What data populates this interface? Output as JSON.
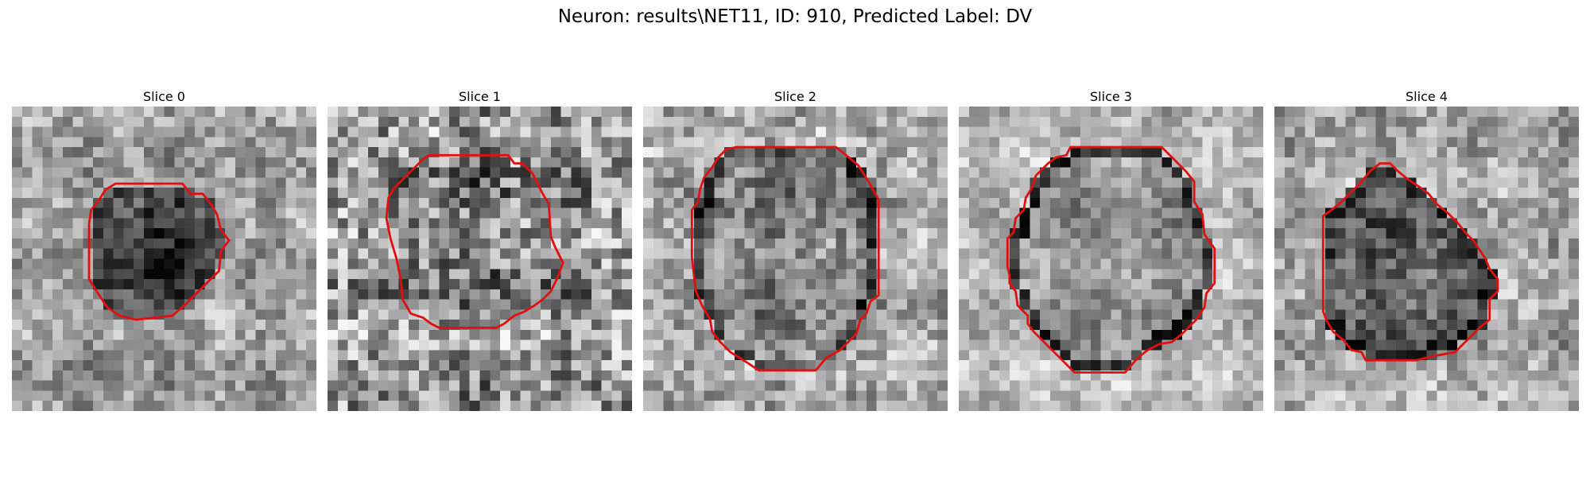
{
  "figure": {
    "title": "Neuron: results\\NET11, ID: 910, Predicted Label: DV",
    "outline_color": "#e01010",
    "colormap": "grayscale"
  },
  "slices": [
    {
      "title": "Slice 0"
    },
    {
      "title": "Slice 1"
    },
    {
      "title": "Slice 2"
    },
    {
      "title": "Slice 3"
    },
    {
      "title": "Slice 4"
    }
  ]
}
